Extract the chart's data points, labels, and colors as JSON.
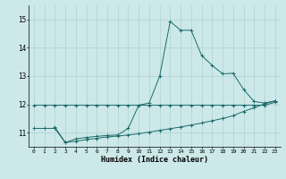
{
  "title": "",
  "xlabel": "Humidex (Indice chaleur)",
  "xlim": [
    -0.5,
    23.5
  ],
  "ylim": [
    10.5,
    15.5
  ],
  "yticks": [
    11,
    12,
    13,
    14,
    15
  ],
  "xticks": [
    0,
    1,
    2,
    3,
    4,
    5,
    6,
    7,
    8,
    9,
    10,
    11,
    12,
    13,
    14,
    15,
    16,
    17,
    18,
    19,
    20,
    21,
    22,
    23
  ],
  "bg_color": "#cce8e8",
  "grid_color": "#aacccc",
  "line_color": "#1e6b6b",
  "line1_x": [
    0,
    1,
    2,
    3,
    4,
    5,
    6,
    7,
    8,
    9,
    10,
    11,
    12,
    13,
    14,
    15,
    16,
    17,
    18,
    19,
    20,
    21,
    22,
    23
  ],
  "line1_y": [
    11.97,
    11.97,
    11.97,
    11.97,
    11.97,
    11.97,
    11.97,
    11.97,
    11.97,
    11.97,
    11.97,
    11.97,
    11.97,
    11.97,
    11.97,
    11.97,
    11.97,
    11.97,
    11.97,
    11.97,
    11.97,
    11.97,
    11.97,
    12.07
  ],
  "line2_x": [
    0,
    1,
    2,
    3,
    4,
    5,
    6,
    7,
    8,
    9,
    10,
    11,
    12,
    13,
    14,
    15,
    16,
    17,
    18,
    19,
    20,
    21,
    22,
    23
  ],
  "line2_y": [
    11.15,
    11.15,
    11.15,
    10.65,
    10.7,
    10.75,
    10.8,
    10.85,
    10.88,
    10.92,
    10.96,
    11.02,
    11.08,
    11.14,
    11.2,
    11.27,
    11.34,
    11.42,
    11.5,
    11.6,
    11.75,
    11.88,
    12.02,
    12.12
  ],
  "line3_x": [
    2,
    3,
    4,
    5,
    6,
    7,
    8,
    9,
    10,
    11,
    12,
    13,
    14,
    15,
    16,
    17,
    18,
    19,
    20,
    21,
    22,
    23
  ],
  "line3_y": [
    11.2,
    10.65,
    10.78,
    10.83,
    10.87,
    10.9,
    10.92,
    11.15,
    11.97,
    12.05,
    13.0,
    14.93,
    14.62,
    14.62,
    13.73,
    13.38,
    13.08,
    13.1,
    12.53,
    12.1,
    12.05,
    12.12
  ]
}
